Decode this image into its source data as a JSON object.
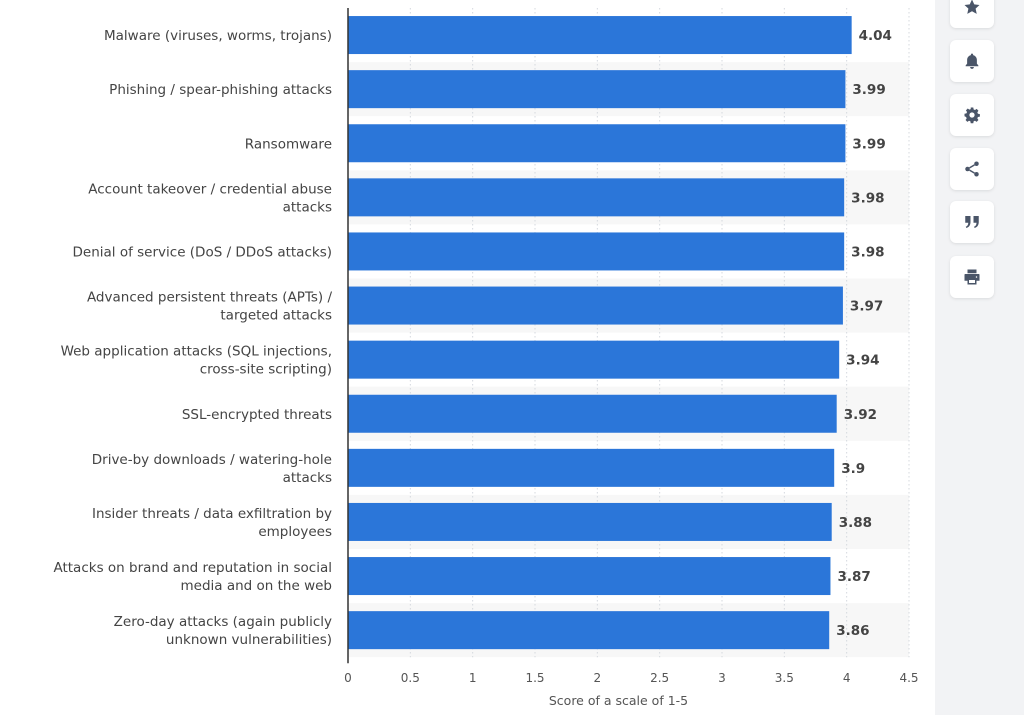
{
  "chart_data": {
    "type": "bar",
    "orientation": "horizontal",
    "categories": [
      "Malware (viruses, worms, trojans)",
      "Phishing / spear-phishing attacks",
      "Ransomware",
      "Account takeover / credential abuse attacks",
      "Denial of service (DoS / DDoS attacks)",
      "Advanced persistent threats (APTs) / targeted attacks",
      "Web application attacks (SQL injections, cross-site scripting)",
      "SSL-encrypted threats",
      "Drive-by downloads / watering-hole attacks",
      "Insider threats / data exfiltration by employees",
      "Attacks on brand and reputation in social media and on the web",
      "Zero-day attacks (again publicly unknown vulnerabilities)"
    ],
    "category_lines": [
      [
        "Malware (viruses, worms, trojans)"
      ],
      [
        "Phishing / spear-phishing attacks"
      ],
      [
        "Ransomware"
      ],
      [
        "Account takeover / credential abuse",
        "attacks"
      ],
      [
        "Denial of service (DoS / DDoS attacks)"
      ],
      [
        "Advanced persistent threats (APTs) /",
        "targeted attacks"
      ],
      [
        "Web application attacks (SQL injections,",
        "cross-site scripting)"
      ],
      [
        "SSL-encrypted threats"
      ],
      [
        "Drive-by downloads / watering-hole",
        "attacks"
      ],
      [
        "Insider threats / data exfiltration by",
        "employees"
      ],
      [
        "Attacks on brand and reputation in social",
        "media and on the web"
      ],
      [
        "Zero-day attacks (again publicly",
        "unknown vulnerabilities)"
      ]
    ],
    "values": [
      4.04,
      3.99,
      3.99,
      3.98,
      3.98,
      3.97,
      3.94,
      3.92,
      3.9,
      3.88,
      3.87,
      3.86
    ],
    "value_labels": [
      "4.04",
      "3.99",
      "3.99",
      "3.98",
      "3.98",
      "3.97",
      "3.94",
      "3.92",
      "3.9",
      "3.88",
      "3.87",
      "3.86"
    ],
    "xlim": [
      0,
      4.5
    ],
    "xticks": [
      0,
      0.5,
      1,
      1.5,
      2,
      2.5,
      3,
      3.5,
      4,
      4.5
    ],
    "xtick_labels": [
      "0",
      "0.5",
      "1",
      "1.5",
      "2",
      "2.5",
      "3",
      "3.5",
      "4",
      "4.5"
    ],
    "xlabel": "Score of a scale of 1-5",
    "ylabel": "",
    "title": "",
    "grid": "vertical dotted",
    "legend": "none",
    "bar_color": "#2b76d9",
    "value_label_color": "#444444",
    "category_label_color": "#444444",
    "alternating_band_color": "#f7f7f7"
  },
  "toolbar": {
    "buttons": [
      {
        "name": "favorite-button",
        "icon": "star-icon"
      },
      {
        "name": "notification-button",
        "icon": "bell-icon"
      },
      {
        "name": "settings-button",
        "icon": "gear-icon"
      },
      {
        "name": "share-button",
        "icon": "share-icon"
      },
      {
        "name": "cite-button",
        "icon": "quote-icon"
      },
      {
        "name": "print-button",
        "icon": "printer-icon"
      }
    ],
    "icon_color": "#4a5568"
  }
}
